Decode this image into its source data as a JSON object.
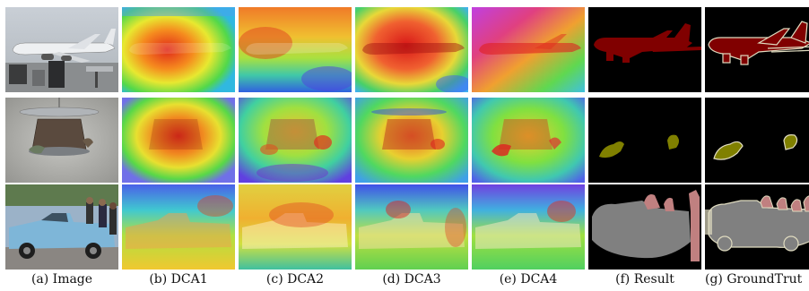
{
  "figure": {
    "columns": [
      {
        "id": "image",
        "label": "(a) Image"
      },
      {
        "id": "dca1",
        "label": "(b) DCA1"
      },
      {
        "id": "dca2",
        "label": "(c) DCA2"
      },
      {
        "id": "dca3",
        "label": "(d) DCA3"
      },
      {
        "id": "dca4",
        "label": "(e) DCA4"
      },
      {
        "id": "result",
        "label": "(f) Result"
      },
      {
        "id": "groundtruth",
        "label": "(g) GroundTrut"
      }
    ],
    "rows": [
      {
        "id": "airplane"
      },
      {
        "id": "bird-feeder"
      },
      {
        "id": "pickup-truck"
      }
    ],
    "colors": {
      "background_mask": "#000000",
      "airplane_mask": "#800000",
      "bird_mask": "#808000",
      "car_mask": "#808080",
      "person_mask": "#c08080",
      "boundary": "#e0dcc0"
    }
  }
}
